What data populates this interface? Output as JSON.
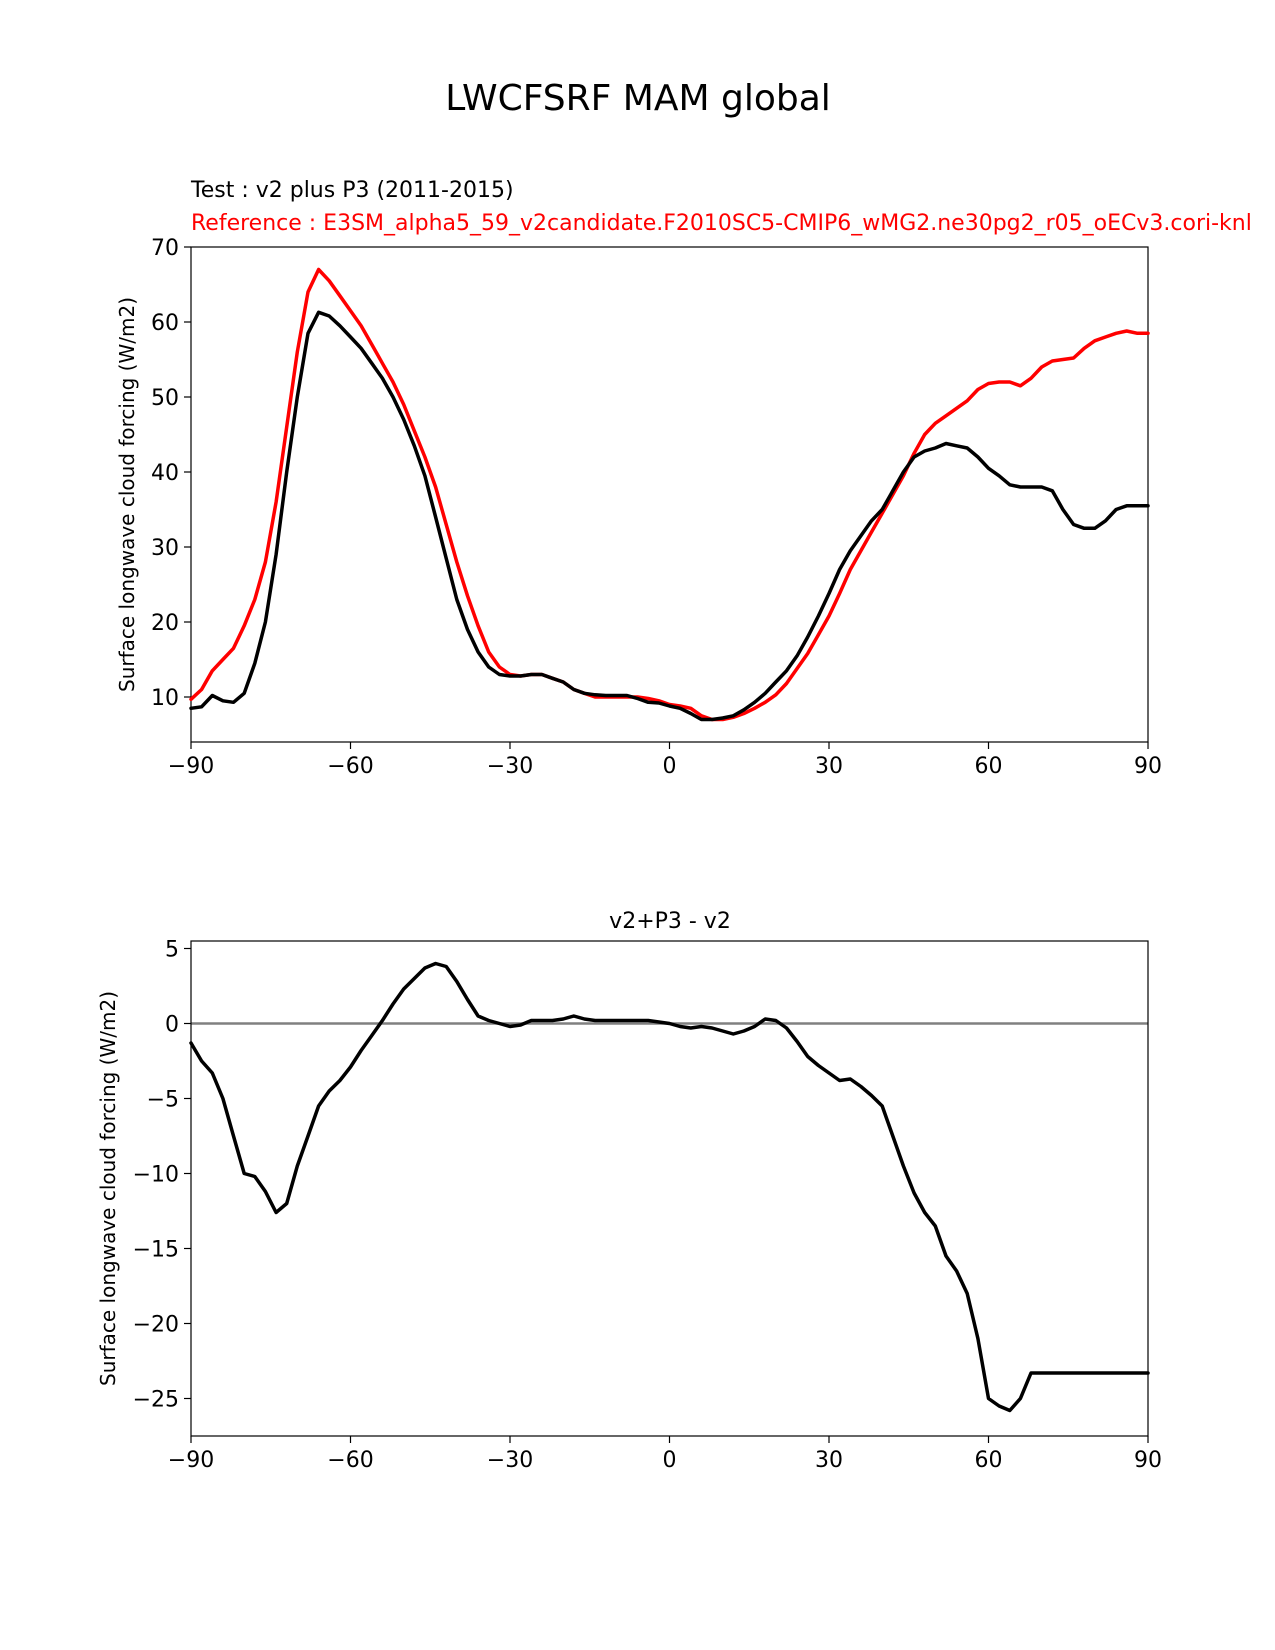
{
  "figure": {
    "title": "LWCFSRF MAM global"
  },
  "chart_data": [
    {
      "type": "line",
      "test_label": "Test : v2 plus P3 (2011-2015)",
      "reference_label": "Reference : E3SM_alpha5_59_v2candidate.F2010SC5-CMIP6_wMG2.ne30pg2_r05_oECv3.cori-knl",
      "ylabel": "Surface longwave cloud forcing (W/m2)",
      "xlim": [
        -90,
        90
      ],
      "ylim": [
        4,
        70
      ],
      "xticks": [
        -90,
        -60,
        -30,
        0,
        30,
        60,
        90
      ],
      "xtick_labels": [
        "−90",
        "−60",
        "−30",
        "0",
        "30",
        "60",
        "90"
      ],
      "yticks": [
        10,
        20,
        30,
        40,
        50,
        60,
        70
      ],
      "ytick_labels": [
        "10",
        "20",
        "30",
        "40",
        "50",
        "60",
        "70"
      ],
      "series": [
        {
          "role": "reference",
          "color": "#ff0000",
          "x": [
            -90,
            -88,
            -86,
            -84,
            -82,
            -80,
            -78,
            -76,
            -74,
            -72,
            -70,
            -68,
            -66,
            -64,
            -62,
            -60,
            -58,
            -56,
            -54,
            -52,
            -50,
            -48,
            -46,
            -44,
            -42,
            -40,
            -38,
            -36,
            -34,
            -32,
            -30,
            -28,
            -26,
            -24,
            -22,
            -20,
            -18,
            -16,
            -14,
            -12,
            -10,
            -8,
            -6,
            -4,
            -2,
            0,
            2,
            4,
            6,
            8,
            10,
            12,
            14,
            16,
            18,
            20,
            22,
            24,
            26,
            28,
            30,
            32,
            34,
            36,
            38,
            40,
            42,
            44,
            46,
            48,
            50,
            52,
            54,
            56,
            58,
            60,
            62,
            64,
            66,
            68,
            70,
            72,
            74,
            76,
            78,
            80,
            82,
            84,
            86,
            88,
            90
          ],
          "y": [
            9.7,
            11,
            13.5,
            15,
            16.5,
            19.5,
            23,
            28,
            36,
            46,
            56,
            64,
            67,
            65.5,
            63.5,
            61.5,
            59.5,
            57,
            54.5,
            52,
            49,
            45.5,
            42,
            38,
            33,
            28,
            23.5,
            19.5,
            16,
            14,
            13,
            12.8,
            13,
            13,
            12.5,
            12,
            11,
            10.5,
            10,
            10,
            10,
            10,
            10,
            9.8,
            9.5,
            9,
            8.8,
            8.5,
            7.5,
            7,
            7,
            7.3,
            7.8,
            8.5,
            9.3,
            10.3,
            11.8,
            13.8,
            15.8,
            18.3,
            20.8,
            23.8,
            27,
            29.5,
            32,
            34.5,
            37,
            39.5,
            42.5,
            45,
            46.5,
            47.5,
            48.5,
            49.5,
            51,
            51.8,
            52,
            52,
            51.5,
            52.5,
            54,
            54.8,
            55,
            55.2,
            56.5,
            57.5,
            58,
            58.5,
            58.8,
            58.5,
            58.5
          ]
        },
        {
          "role": "test",
          "color": "#000000",
          "x": [
            -90,
            -88,
            -86,
            -84,
            -82,
            -80,
            -78,
            -76,
            -74,
            -72,
            -70,
            -68,
            -66,
            -64,
            -62,
            -60,
            -58,
            -56,
            -54,
            -52,
            -50,
            -48,
            -46,
            -44,
            -42,
            -40,
            -38,
            -36,
            -34,
            -32,
            -30,
            -28,
            -26,
            -24,
            -22,
            -20,
            -18,
            -16,
            -14,
            -12,
            -10,
            -8,
            -6,
            -4,
            -2,
            0,
            2,
            4,
            6,
            8,
            10,
            12,
            14,
            16,
            18,
            20,
            22,
            24,
            26,
            28,
            30,
            32,
            34,
            36,
            38,
            40,
            42,
            44,
            46,
            48,
            50,
            52,
            54,
            56,
            58,
            60,
            62,
            64,
            66,
            68,
            70,
            72,
            74,
            76,
            78,
            80,
            82,
            84,
            86,
            88,
            90
          ],
          "y": [
            8.5,
            8.7,
            10.2,
            9.5,
            9.3,
            10.5,
            14.5,
            20,
            29,
            40,
            50,
            58.5,
            61.3,
            60.8,
            59.5,
            58,
            56.5,
            54.5,
            52.5,
            50,
            47,
            43.5,
            39.5,
            34,
            28.5,
            23,
            19,
            16,
            14,
            13,
            12.8,
            12.8,
            13,
            13,
            12.5,
            12,
            11,
            10.5,
            10.3,
            10.2,
            10.2,
            10.2,
            9.8,
            9.3,
            9.2,
            8.8,
            8.5,
            7.8,
            7,
            7,
            7.2,
            7.5,
            8.3,
            9.3,
            10.5,
            12,
            13.5,
            15.5,
            18,
            20.8,
            23.8,
            27,
            29.5,
            31.5,
            33.5,
            35,
            37.5,
            40,
            42,
            42.8,
            43.2,
            43.8,
            43.5,
            43.2,
            42,
            40.5,
            39.5,
            38.3,
            38,
            38,
            38,
            37.5,
            35,
            33,
            32.5,
            32.5,
            33.5,
            35,
            35.5,
            35.5,
            35.5
          ]
        }
      ]
    },
    {
      "type": "line",
      "title": "v2+P3 - v2",
      "ylabel": "Surface longwave cloud forcing (W/m2)",
      "xlim": [
        -90,
        90
      ],
      "ylim": [
        -27.5,
        5.5
      ],
      "xticks": [
        -90,
        -60,
        -30,
        0,
        30,
        60,
        90
      ],
      "xtick_labels": [
        "−90",
        "−60",
        "−30",
        "0",
        "30",
        "60",
        "90"
      ],
      "yticks": [
        5,
        0,
        -5,
        -10,
        -15,
        -20,
        -25
      ],
      "ytick_labels": [
        "5",
        "0",
        "−5",
        "−10",
        "−15",
        "−20",
        "−25"
      ],
      "zero_line_color": "#808080",
      "series": [
        {
          "role": "difference",
          "color": "#000000",
          "x": [
            -90,
            -88,
            -86,
            -84,
            -82,
            -80,
            -78,
            -76,
            -74,
            -72,
            -70,
            -68,
            -66,
            -64,
            -62,
            -60,
            -58,
            -56,
            -54,
            -52,
            -50,
            -48,
            -46,
            -44,
            -42,
            -40,
            -38,
            -36,
            -34,
            -32,
            -30,
            -28,
            -26,
            -24,
            -22,
            -20,
            -18,
            -16,
            -14,
            -12,
            -10,
            -8,
            -6,
            -4,
            -2,
            0,
            2,
            4,
            6,
            8,
            10,
            12,
            14,
            16,
            18,
            20,
            22,
            24,
            26,
            28,
            30,
            32,
            34,
            36,
            38,
            40,
            42,
            44,
            46,
            48,
            50,
            52,
            54,
            56,
            58,
            60,
            62,
            64,
            66,
            68,
            70,
            72,
            74,
            76,
            78,
            80,
            82,
            84,
            86,
            88,
            90
          ],
          "y": [
            -1.3,
            -2.5,
            -3.3,
            -5,
            -7.5,
            -10,
            -10.2,
            -11.2,
            -12.6,
            -12,
            -9.5,
            -7.5,
            -5.5,
            -4.5,
            -3.8,
            -2.9,
            -1.8,
            -0.8,
            0.2,
            1.3,
            2.3,
            3,
            3.7,
            4,
            3.8,
            2.8,
            1.6,
            0.5,
            0.2,
            0,
            -0.2,
            -0.1,
            0.2,
            0.2,
            0.2,
            0.3,
            0.5,
            0.3,
            0.2,
            0.2,
            0.2,
            0.2,
            0.2,
            0.2,
            0.1,
            0,
            -0.2,
            -0.3,
            -0.2,
            -0.3,
            -0.5,
            -0.7,
            -0.5,
            -0.2,
            0.3,
            0.2,
            -0.3,
            -1.2,
            -2.2,
            -2.8,
            -3.3,
            -3.8,
            -3.7,
            -4.2,
            -4.8,
            -5.5,
            -7.5,
            -9.5,
            -11.3,
            -12.6,
            -13.5,
            -15.5,
            -16.5,
            -18,
            -21,
            -25,
            -25.5,
            -25.8,
            -25,
            -23.3,
            -23.3,
            -23.3,
            -23.3,
            -23.3,
            -23.3,
            -23.3,
            -23.3,
            -23.3,
            -23.3,
            -23.3,
            -23.3
          ]
        }
      ]
    }
  ]
}
